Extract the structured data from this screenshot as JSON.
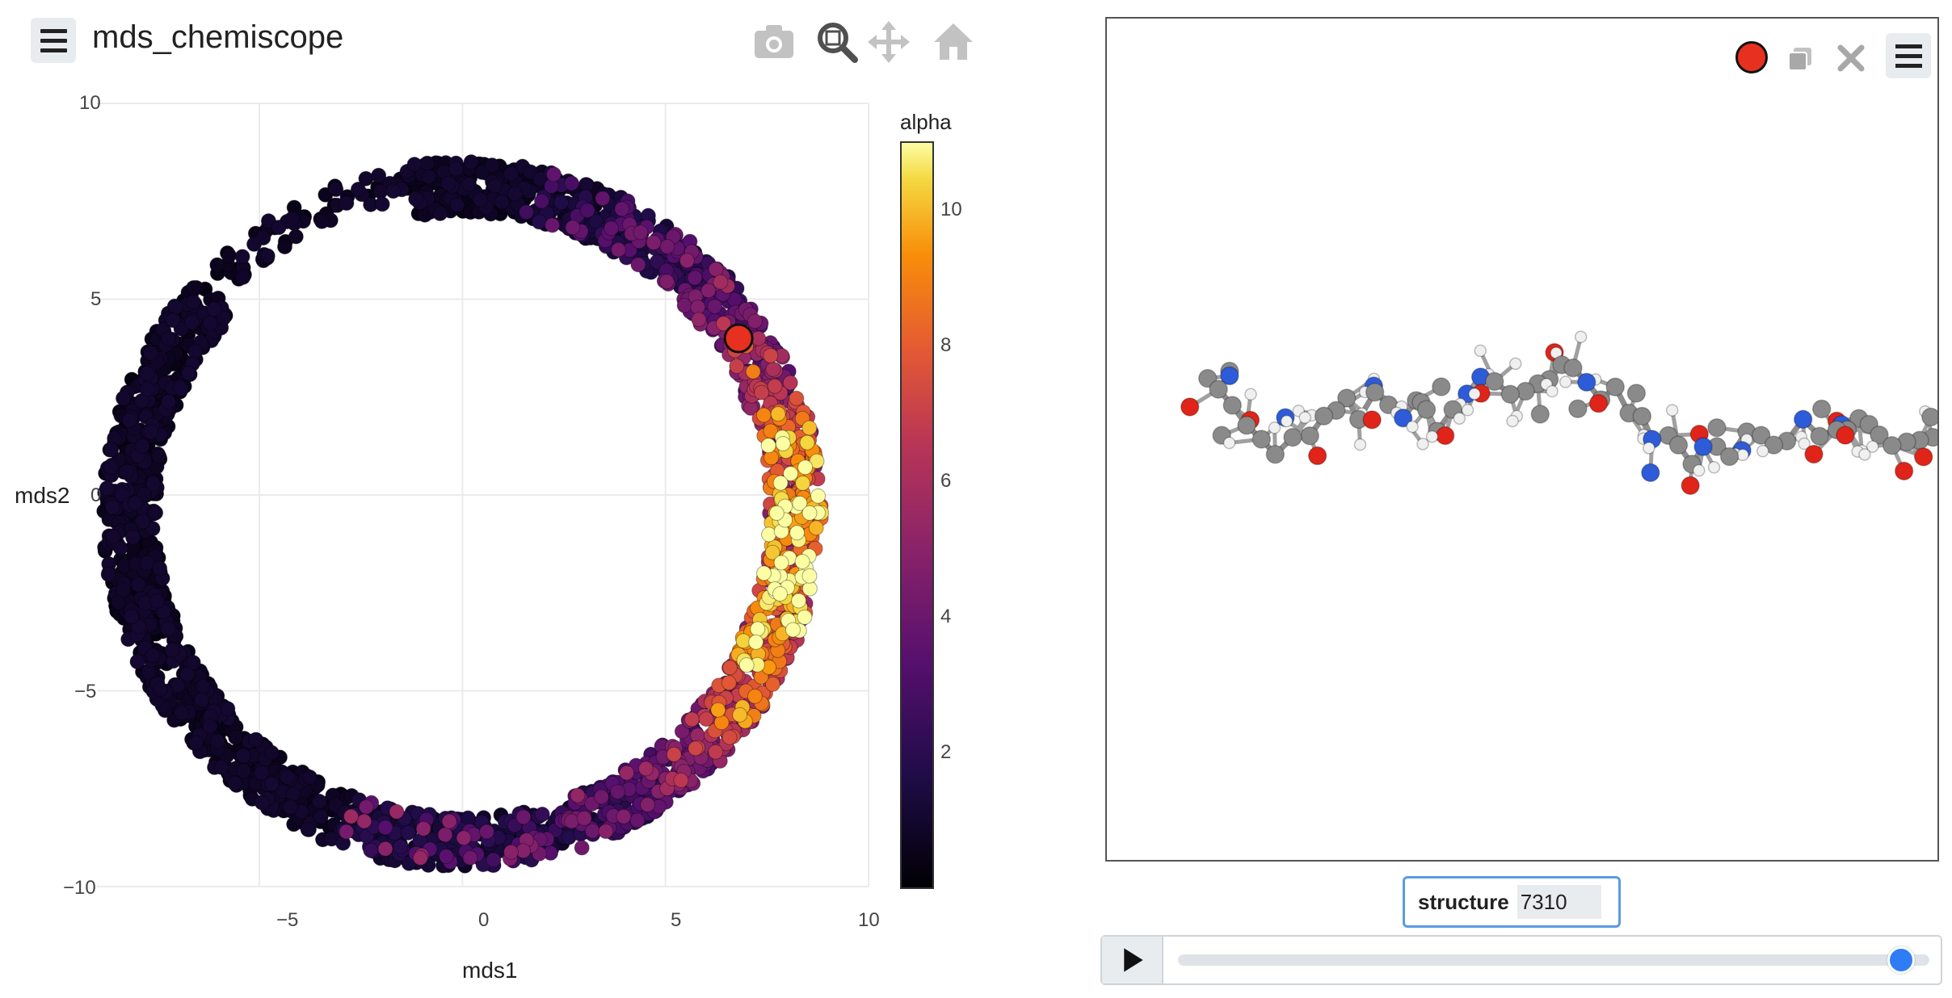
{
  "header": {
    "title": "mds_chemiscope",
    "modebar": [
      "camera-icon",
      "zoom-icon",
      "pan-icon",
      "home-icon"
    ]
  },
  "map": {
    "x_axis_title": "mds1",
    "y_axis_title": "mds2",
    "colorbar_title": "alpha",
    "x_ticks": [
      "−5",
      "0",
      "5",
      "10"
    ],
    "y_ticks": [
      "10",
      "5",
      "0",
      "−5",
      "−10"
    ],
    "colorbar_ticks": [
      "10",
      "8",
      "6",
      "4",
      "2"
    ]
  },
  "chart_data": {
    "type": "scatter",
    "title": "",
    "xlabel": "mds1",
    "ylabel": "mds2",
    "xlim": [
      -9,
      10
    ],
    "ylim": [
      -10,
      10
    ],
    "grid": true,
    "colorbar": {
      "title": "alpha",
      "range": [
        0,
        11
      ],
      "colormap": "inferno"
    },
    "highlighted_point": {
      "x": 6.8,
      "y": 4.0,
      "color": "#e7301f"
    },
    "distribution": "points lie on a ring of radius ~8.2 centered near (0, -0.5); alpha is near 0 on the left half and rises to ~11 on the right side around y = -1 to 1"
  },
  "viewer": {
    "marker_color": "#e7301f",
    "toolbar": [
      "duplicate-icon",
      "close-icon",
      "viewer-menu-icon"
    ]
  },
  "structure": {
    "label": "structure",
    "value": "7310"
  },
  "playback": {
    "slider_fraction": 0.962
  },
  "colors": {
    "accent": "#2f7df6",
    "highlight": "#e7301f",
    "carbon": "#8a8a8a",
    "oxygen": "#e02419",
    "nitrogen": "#2e5bd8",
    "hydrogen": "#f0f0f0"
  }
}
